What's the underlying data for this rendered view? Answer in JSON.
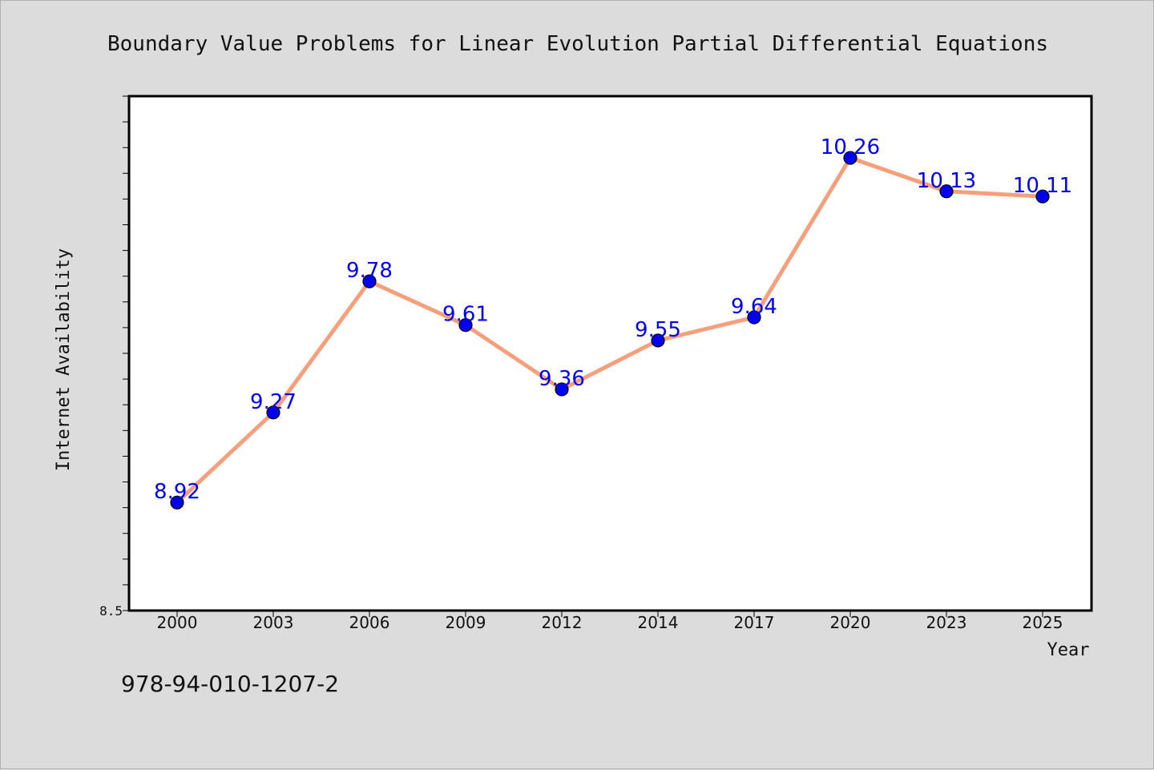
{
  "chart_data": {
    "type": "line",
    "title": "Boundary Value Problems for Linear Evolution Partial Differential Equations",
    "xlabel": "Year",
    "ylabel": "Internet Availability",
    "categories": [
      "2000",
      "2003",
      "2006",
      "2009",
      "2012",
      "2014",
      "2017",
      "2020",
      "2023",
      "2025"
    ],
    "series": [
      {
        "values": [
          8.92,
          9.27,
          9.78,
          9.61,
          9.36,
          9.55,
          9.64,
          10.26,
          10.13,
          10.11
        ]
      }
    ],
    "data_labels": [
      "8.92",
      "9.27",
      "9.78",
      "9.61",
      "9.36",
      "9.55",
      "9.64",
      "10.26",
      "10.13",
      "10.11"
    ],
    "ylim": [
      8.5,
      10.5
    ],
    "y_tick_labels": [
      "8.5"
    ],
    "grid": false,
    "legend": "none",
    "colors": {
      "line": "#f4a07c",
      "marker": "#0000ee",
      "label": "#0000ee",
      "plot_bg": "#ffffff",
      "figure_bg": "#dcdcdc"
    }
  },
  "footer": {
    "isbn": "978-94-010-1207-2"
  }
}
